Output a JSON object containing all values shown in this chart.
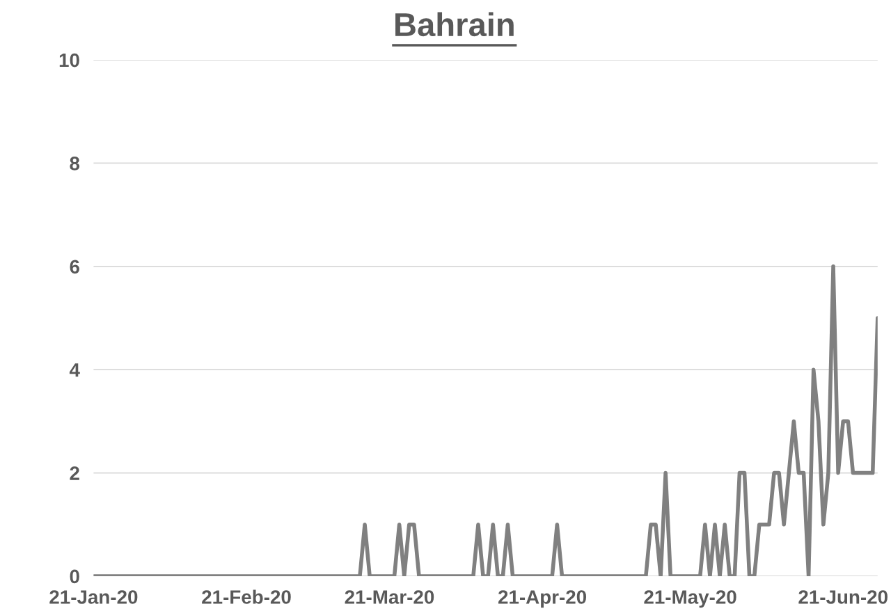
{
  "chart_data": {
    "type": "line",
    "title": "Bahrain",
    "x": [
      "2020-01-21",
      "2020-01-22",
      "2020-01-23",
      "2020-01-24",
      "2020-01-25",
      "2020-01-26",
      "2020-01-27",
      "2020-01-28",
      "2020-01-29",
      "2020-01-30",
      "2020-01-31",
      "2020-02-01",
      "2020-02-02",
      "2020-02-03",
      "2020-02-04",
      "2020-02-05",
      "2020-02-06",
      "2020-02-07",
      "2020-02-08",
      "2020-02-09",
      "2020-02-10",
      "2020-02-11",
      "2020-02-12",
      "2020-02-13",
      "2020-02-14",
      "2020-02-15",
      "2020-02-16",
      "2020-02-17",
      "2020-02-18",
      "2020-02-19",
      "2020-02-20",
      "2020-02-21",
      "2020-02-22",
      "2020-02-23",
      "2020-02-24",
      "2020-02-25",
      "2020-02-26",
      "2020-02-27",
      "2020-02-28",
      "2020-02-29",
      "2020-03-01",
      "2020-03-02",
      "2020-03-03",
      "2020-03-04",
      "2020-03-05",
      "2020-03-06",
      "2020-03-07",
      "2020-03-08",
      "2020-03-09",
      "2020-03-10",
      "2020-03-11",
      "2020-03-12",
      "2020-03-13",
      "2020-03-14",
      "2020-03-15",
      "2020-03-16",
      "2020-03-17",
      "2020-03-18",
      "2020-03-19",
      "2020-03-20",
      "2020-03-21",
      "2020-03-22",
      "2020-03-23",
      "2020-03-24",
      "2020-03-25",
      "2020-03-26",
      "2020-03-27",
      "2020-03-28",
      "2020-03-29",
      "2020-03-30",
      "2020-03-31",
      "2020-04-01",
      "2020-04-02",
      "2020-04-03",
      "2020-04-04",
      "2020-04-05",
      "2020-04-06",
      "2020-04-07",
      "2020-04-08",
      "2020-04-09",
      "2020-04-10",
      "2020-04-11",
      "2020-04-12",
      "2020-04-13",
      "2020-04-14",
      "2020-04-15",
      "2020-04-16",
      "2020-04-17",
      "2020-04-18",
      "2020-04-19",
      "2020-04-20",
      "2020-04-21",
      "2020-04-22",
      "2020-04-23",
      "2020-04-24",
      "2020-04-25",
      "2020-04-26",
      "2020-04-27",
      "2020-04-28",
      "2020-04-29",
      "2020-04-30",
      "2020-05-01",
      "2020-05-02",
      "2020-05-03",
      "2020-05-04",
      "2020-05-05",
      "2020-05-06",
      "2020-05-07",
      "2020-05-08",
      "2020-05-09",
      "2020-05-10",
      "2020-05-11",
      "2020-05-12",
      "2020-05-13",
      "2020-05-14",
      "2020-05-15",
      "2020-05-16",
      "2020-05-17",
      "2020-05-18",
      "2020-05-19",
      "2020-05-20",
      "2020-05-21",
      "2020-05-22",
      "2020-05-23",
      "2020-05-24",
      "2020-05-25",
      "2020-05-26",
      "2020-05-27",
      "2020-05-28",
      "2020-05-29",
      "2020-05-30",
      "2020-05-31",
      "2020-06-01",
      "2020-06-02",
      "2020-06-03",
      "2020-06-04",
      "2020-06-05",
      "2020-06-06",
      "2020-06-07",
      "2020-06-08",
      "2020-06-09",
      "2020-06-10",
      "2020-06-11",
      "2020-06-12",
      "2020-06-13",
      "2020-06-14",
      "2020-06-15",
      "2020-06-16",
      "2020-06-17",
      "2020-06-18",
      "2020-06-19",
      "2020-06-20",
      "2020-06-21",
      "2020-06-22",
      "2020-06-23",
      "2020-06-24",
      "2020-06-25",
      "2020-06-26",
      "2020-06-27",
      "2020-06-28"
    ],
    "series": [
      {
        "color": "#808080",
        "values": [
          0,
          0,
          0,
          0,
          0,
          0,
          0,
          0,
          0,
          0,
          0,
          0,
          0,
          0,
          0,
          0,
          0,
          0,
          0,
          0,
          0,
          0,
          0,
          0,
          0,
          0,
          0,
          0,
          0,
          0,
          0,
          0,
          0,
          0,
          0,
          0,
          0,
          0,
          0,
          0,
          0,
          0,
          0,
          0,
          0,
          0,
          0,
          0,
          0,
          0,
          0,
          0,
          0,
          0,
          0,
          1,
          0,
          0,
          0,
          0,
          0,
          0,
          1,
          0,
          1,
          1,
          0,
          0,
          0,
          0,
          0,
          0,
          0,
          0,
          0,
          0,
          0,
          0,
          1,
          0,
          0,
          1,
          0,
          0,
          1,
          0,
          0,
          0,
          0,
          0,
          0,
          0,
          0,
          0,
          1,
          0,
          0,
          0,
          0,
          0,
          0,
          0,
          0,
          0,
          0,
          0,
          0,
          0,
          0,
          0,
          0,
          0,
          0,
          1,
          1,
          0,
          2,
          0,
          0,
          0,
          0,
          0,
          0,
          0,
          1,
          0,
          1,
          0,
          1,
          0,
          0,
          2,
          2,
          0,
          0,
          1,
          1,
          1,
          2,
          2,
          1,
          2,
          3,
          2,
          2,
          0,
          4,
          3,
          1,
          2,
          6,
          2,
          3,
          3,
          2,
          2,
          2,
          2,
          2,
          5
        ]
      }
    ],
    "xlim": [
      "2020-01-21",
      "2020-06-28"
    ],
    "xticks": [
      {
        "value": "2020-01-21",
        "label": "21-Jan-20"
      },
      {
        "value": "2020-02-21",
        "label": "21-Feb-20"
      },
      {
        "value": "2020-03-21",
        "label": "21-Mar-20"
      },
      {
        "value": "2020-04-21",
        "label": "21-Apr-20"
      },
      {
        "value": "2020-05-21",
        "label": "21-May-20"
      },
      {
        "value": "2020-06-21",
        "label": "21-Jun-20"
      }
    ],
    "ylim": [
      0,
      10
    ],
    "yticks": [
      0,
      2,
      4,
      6,
      8,
      10
    ],
    "grid": "y",
    "marker": "none",
    "line_style": "solid",
    "legend": false
  }
}
